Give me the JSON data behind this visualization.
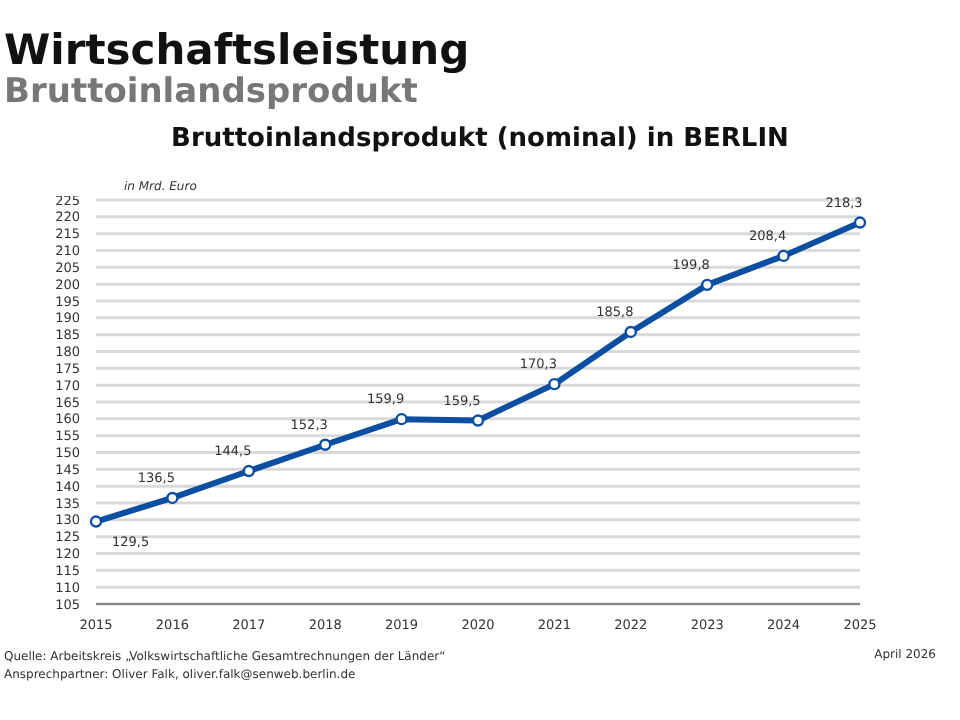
{
  "chart_data": {
    "type": "line",
    "title": "Wirtschaftsleistung",
    "subtitle": "Bruttoinlandsprodukt",
    "annotations": [
      "Bruttoinlandsprodukt (nominal) in BERLIN",
      "Quelle: Arbeitskreis „Volkswirtschaftliche Gesamtrechnungen der Länder“",
      "Ansprechpartner: Oliver Falk, oliver.falk@senweb.berlin.de",
      "April 2026"
    ],
    "ylabel": "in Mrd. Euro",
    "categories": [
      "2015",
      "2016",
      "2017",
      "2018",
      "2019",
      "2020",
      "2021",
      "2022",
      "2023",
      "2024",
      "2025"
    ],
    "series": [
      {
        "color": "#0b4ea2",
        "values": [
          129.5,
          136.5,
          144.5,
          152.3,
          159.9,
          159.5,
          170.3,
          185.8,
          199.8,
          208.4,
          218.3
        ],
        "value_labels": [
          "129,5",
          "136,5",
          "144,5",
          "152,3",
          "159,9",
          "159,5",
          "170,3",
          "185,8",
          "199,8",
          "208,4",
          "218,3"
        ]
      }
    ],
    "ylim": [
      105,
      225
    ],
    "yticks": [
      105,
      110,
      115,
      120,
      125,
      130,
      135,
      140,
      145,
      150,
      155,
      160,
      165,
      170,
      175,
      180,
      185,
      190,
      195,
      200,
      205,
      210,
      215,
      220,
      225
    ],
    "grid": "y",
    "marker": "circle",
    "line_style": "solid"
  }
}
